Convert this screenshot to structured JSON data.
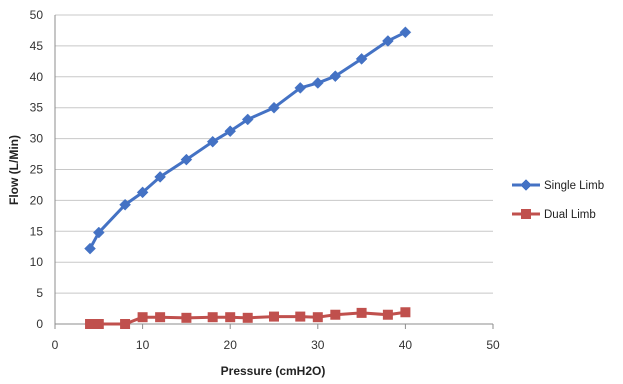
{
  "chart_data": {
    "type": "line",
    "title": "",
    "xlabel": "Pressure (cmH2O)",
    "ylabel": "Flow (L/Min)",
    "xlim": [
      0,
      50
    ],
    "ylim": [
      0,
      50
    ],
    "x_ticks": [
      "0",
      "10",
      "20",
      "30",
      "40",
      "50"
    ],
    "y_ticks": [
      "0",
      "5",
      "10",
      "15",
      "20",
      "25",
      "30",
      "35",
      "40",
      "45",
      "50"
    ],
    "grid": "horizontal",
    "legend_position": "right",
    "series": [
      {
        "name": "Single Limb",
        "color": "#4472C4",
        "marker": "diamond",
        "points": [
          {
            "x": 4,
            "y": 12.2
          },
          {
            "x": 5,
            "y": 14.8
          },
          {
            "x": 8,
            "y": 19.3
          },
          {
            "x": 10,
            "y": 21.3
          },
          {
            "x": 12,
            "y": 23.8
          },
          {
            "x": 15,
            "y": 26.6
          },
          {
            "x": 18,
            "y": 29.5
          },
          {
            "x": 20,
            "y": 31.2
          },
          {
            "x": 22,
            "y": 33.1
          },
          {
            "x": 25,
            "y": 35.0
          },
          {
            "x": 28,
            "y": 38.2
          },
          {
            "x": 30,
            "y": 39.0
          },
          {
            "x": 32,
            "y": 40.1
          },
          {
            "x": 35,
            "y": 42.9
          },
          {
            "x": 38,
            "y": 45.8
          },
          {
            "x": 40,
            "y": 47.2
          }
        ]
      },
      {
        "name": "Dual Limb",
        "color": "#C0504D",
        "marker": "square",
        "points": [
          {
            "x": 4,
            "y": 0.0
          },
          {
            "x": 5,
            "y": 0.0
          },
          {
            "x": 8,
            "y": 0.0
          },
          {
            "x": 10,
            "y": 1.1
          },
          {
            "x": 12,
            "y": 1.1
          },
          {
            "x": 15,
            "y": 1.0
          },
          {
            "x": 18,
            "y": 1.1
          },
          {
            "x": 20,
            "y": 1.1
          },
          {
            "x": 22,
            "y": 1.0
          },
          {
            "x": 25,
            "y": 1.2
          },
          {
            "x": 28,
            "y": 1.2
          },
          {
            "x": 30,
            "y": 1.1
          },
          {
            "x": 32,
            "y": 1.5
          },
          {
            "x": 35,
            "y": 1.8
          },
          {
            "x": 38,
            "y": 1.5
          },
          {
            "x": 40,
            "y": 1.9
          }
        ]
      }
    ]
  }
}
